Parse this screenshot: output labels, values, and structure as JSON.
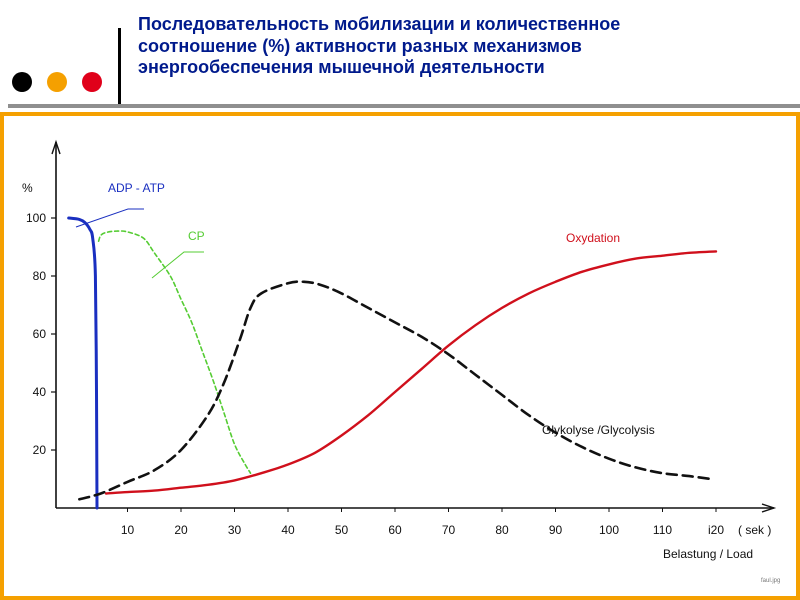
{
  "header": {
    "title_lines": [
      "Последовательность  мобилизации и количественное",
      "соотношение (%) активности разных механизмов",
      "энергообеспечения мышечной деятельности"
    ],
    "title_color": "#001a8c",
    "dot_colors": [
      "#000000",
      "#f5a000",
      "#e0001a"
    ],
    "frame_color": "#f5a000"
  },
  "chart_data": {
    "type": "line",
    "ylabel": "%",
    "xlabel": "Belastung / Load",
    "x_unit": "( sek )",
    "xlim": [
      0,
      125
    ],
    "ylim": [
      0,
      110
    ],
    "x_tick_labels": [
      {
        "x": 10,
        "label": "10"
      },
      {
        "x": 20,
        "label": "20"
      },
      {
        "x": 30,
        "label": "30"
      },
      {
        "x": 40,
        "label": "40"
      },
      {
        "x": 50,
        "label": "50"
      },
      {
        "x": 60,
        "label": "60"
      },
      {
        "x": 70,
        "label": "70"
      },
      {
        "x": 80,
        "label": "80"
      },
      {
        "x": 90,
        "label": "90"
      },
      {
        "x": 100,
        "label": "100"
      },
      {
        "x": 110,
        "label": "110"
      },
      {
        "x": 120,
        "label": "i20"
      }
    ],
    "y_ticks": [
      20,
      40,
      60,
      80,
      100
    ],
    "grid": false,
    "legend": "labels on curves",
    "series": [
      {
        "name": "ADP - ATP",
        "color": "#1a2fc0",
        "dash": "solid",
        "x": [
          -1,
          1,
          2,
          3,
          3.5,
          4,
          4.2,
          4.3
        ],
        "y": [
          100,
          99.5,
          98.5,
          96,
          93,
          80,
          40,
          0
        ]
      },
      {
        "name": "CP",
        "color": "#55cc33",
        "dash": "dotted",
        "x": [
          4.6,
          5,
          6,
          8,
          10,
          13,
          15,
          18,
          20,
          22,
          24,
          26,
          28,
          30,
          32,
          33
        ],
        "y": [
          92,
          94,
          95,
          95.5,
          95.2,
          93,
          88,
          80,
          72,
          64,
          54,
          44,
          33,
          22,
          15,
          12
        ]
      },
      {
        "name": "Glykolyse /Glycolysis",
        "color": "#111111",
        "dash": "dashed",
        "x": [
          1,
          5,
          10,
          15,
          20,
          25,
          28,
          31,
          33,
          35,
          40,
          43,
          46,
          50,
          55,
          60,
          65,
          70,
          75,
          80,
          85,
          90,
          95,
          100,
          105,
          110,
          115,
          119
        ],
        "y": [
          3,
          5,
          9,
          13,
          20,
          32,
          43,
          58,
          69,
          74,
          77.5,
          78,
          77,
          74,
          69,
          64,
          59,
          53,
          46,
          39,
          32,
          26,
          21,
          17,
          14,
          12,
          11,
          10
        ]
      },
      {
        "name": "Oxydation",
        "color": "#d0101c",
        "dash": "solid",
        "x": [
          6,
          10,
          15,
          20,
          25,
          30,
          35,
          40,
          45,
          50,
          55,
          60,
          65,
          70,
          75,
          80,
          85,
          90,
          95,
          100,
          105,
          110,
          115,
          120
        ],
        "y": [
          5,
          5.5,
          6,
          7,
          8,
          9.5,
          12,
          15,
          19,
          25,
          32,
          40,
          48,
          56,
          63,
          69,
          74,
          78,
          81.5,
          84,
          86,
          87,
          88,
          88.5
        ]
      }
    ],
    "annotation": "faul.jpg"
  }
}
